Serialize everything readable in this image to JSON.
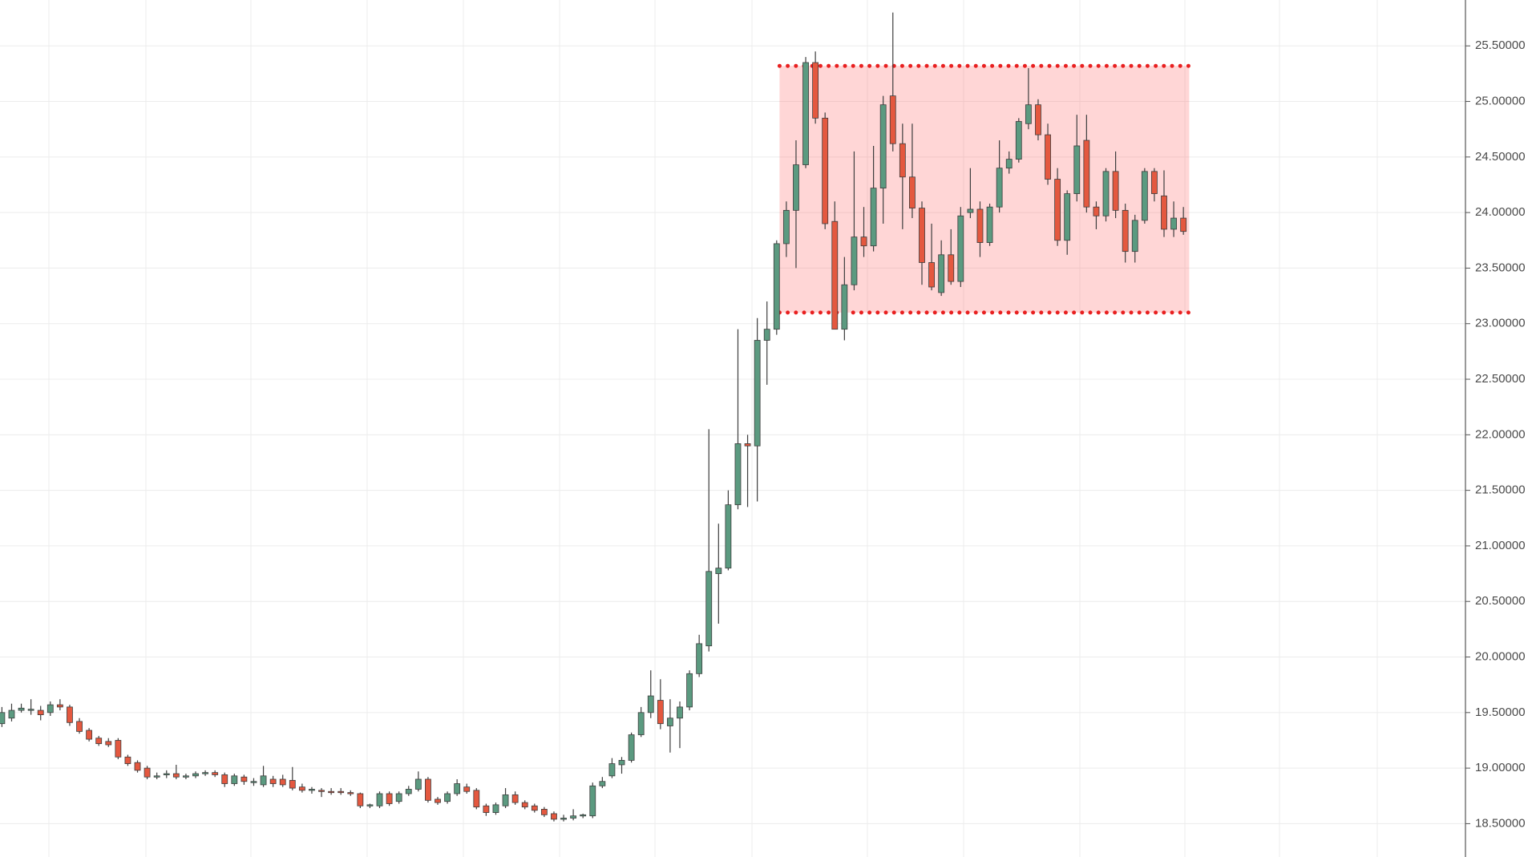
{
  "chart_data": {
    "type": "candlestick",
    "ylim": [
      18.2,
      25.913
    ],
    "yticks": [
      {
        "value": 18.5,
        "label": "18.50000"
      },
      {
        "value": 19,
        "label": "19.00000"
      },
      {
        "value": 19.5,
        "label": "19.50000"
      },
      {
        "value": 20,
        "label": "20.00000"
      },
      {
        "value": 20.5,
        "label": "20.50000"
      },
      {
        "value": 21,
        "label": "21.00000"
      },
      {
        "value": 21.5,
        "label": "21.50000"
      },
      {
        "value": 22,
        "label": "22.00000"
      },
      {
        "value": 22.5,
        "label": "22.50000"
      },
      {
        "value": 23,
        "label": "23.00000"
      },
      {
        "value": 23.5,
        "label": "23.50000"
      },
      {
        "value": 24,
        "label": "24.00000"
      },
      {
        "value": 24.5,
        "label": "24.50000"
      },
      {
        "value": 25,
        "label": "25.00000"
      },
      {
        "value": 25.5,
        "label": "25.50000"
      }
    ],
    "grid": true,
    "up_color": "#5b9a80",
    "down_color": "#e4583f",
    "ohlc": [
      [
        19.4,
        19.55,
        19.37,
        19.5
      ],
      [
        19.45,
        19.58,
        19.42,
        19.52
      ],
      [
        19.52,
        19.58,
        19.5,
        19.54
      ],
      [
        19.52,
        19.62,
        19.48,
        19.53
      ],
      [
        19.52,
        19.56,
        19.43,
        19.48
      ],
      [
        19.5,
        19.6,
        19.47,
        19.57
      ],
      [
        19.57,
        19.62,
        19.52,
        19.55
      ],
      [
        19.55,
        19.57,
        19.38,
        19.41
      ],
      [
        19.42,
        19.45,
        19.31,
        19.33
      ],
      [
        19.34,
        19.36,
        19.24,
        19.26
      ],
      [
        19.27,
        19.29,
        19.2,
        19.22
      ],
      [
        19.24,
        19.27,
        19.19,
        19.21
      ],
      [
        19.25,
        19.27,
        19.08,
        19.1
      ],
      [
        19.1,
        19.12,
        19.02,
        19.04
      ],
      [
        19.05,
        19.07,
        18.96,
        18.98
      ],
      [
        19.0,
        19.02,
        18.9,
        18.92
      ],
      [
        18.92,
        18.96,
        18.9,
        18.93
      ],
      [
        18.94,
        18.98,
        18.91,
        18.95
      ],
      [
        18.95,
        19.03,
        18.9,
        18.92
      ],
      [
        18.92,
        18.95,
        18.9,
        18.93
      ],
      [
        18.93,
        18.97,
        18.91,
        18.95
      ],
      [
        18.95,
        18.98,
        18.93,
        18.96
      ],
      [
        18.96,
        18.98,
        18.92,
        18.94
      ],
      [
        18.94,
        18.96,
        18.83,
        18.86
      ],
      [
        18.86,
        18.95,
        18.84,
        18.93
      ],
      [
        18.92,
        18.94,
        18.85,
        18.88
      ],
      [
        18.87,
        18.91,
        18.84,
        18.88
      ],
      [
        18.85,
        19.02,
        18.83,
        18.93
      ],
      [
        18.9,
        18.93,
        18.83,
        18.86
      ],
      [
        18.9,
        18.94,
        18.83,
        18.85
      ],
      [
        18.89,
        19.01,
        18.8,
        18.82
      ],
      [
        18.83,
        18.86,
        18.78,
        18.8
      ],
      [
        18.8,
        18.83,
        18.77,
        18.81
      ],
      [
        18.8,
        18.82,
        18.74,
        18.79
      ],
      [
        18.79,
        18.82,
        18.76,
        18.78
      ],
      [
        18.79,
        18.82,
        18.76,
        18.78
      ],
      [
        18.78,
        18.8,
        18.75,
        18.77
      ],
      [
        18.77,
        18.78,
        18.64,
        18.66
      ],
      [
        18.66,
        18.68,
        18.64,
        18.67
      ],
      [
        18.66,
        18.79,
        18.64,
        18.77
      ],
      [
        18.77,
        18.79,
        18.66,
        18.68
      ],
      [
        18.7,
        18.79,
        18.68,
        18.77
      ],
      [
        18.77,
        18.84,
        18.75,
        18.81
      ],
      [
        18.81,
        18.97,
        18.79,
        18.9
      ],
      [
        18.9,
        18.92,
        18.69,
        18.71
      ],
      [
        18.72,
        18.74,
        18.67,
        18.69
      ],
      [
        18.7,
        18.79,
        18.68,
        18.77
      ],
      [
        18.77,
        18.9,
        18.75,
        18.86
      ],
      [
        18.83,
        18.86,
        18.77,
        18.79
      ],
      [
        18.8,
        18.82,
        18.63,
        18.65
      ],
      [
        18.66,
        18.68,
        18.57,
        18.6
      ],
      [
        18.6,
        18.69,
        18.58,
        18.67
      ],
      [
        18.66,
        18.82,
        18.64,
        18.76
      ],
      [
        18.76,
        18.79,
        18.67,
        18.69
      ],
      [
        18.69,
        18.71,
        18.63,
        18.65
      ],
      [
        18.66,
        18.68,
        18.6,
        18.62
      ],
      [
        18.63,
        18.65,
        18.56,
        18.58
      ],
      [
        18.59,
        18.61,
        18.52,
        18.54
      ],
      [
        18.54,
        18.58,
        18.52,
        18.55
      ],
      [
        18.55,
        18.63,
        18.53,
        18.57
      ],
      [
        18.57,
        18.59,
        18.55,
        18.58
      ],
      [
        18.57,
        18.87,
        18.55,
        18.84
      ],
      [
        18.84,
        18.92,
        18.82,
        18.88
      ],
      [
        18.93,
        19.09,
        18.91,
        19.04
      ],
      [
        19.03,
        19.1,
        18.95,
        19.07
      ],
      [
        19.07,
        19.32,
        19.05,
        19.3
      ],
      [
        19.3,
        19.55,
        19.28,
        19.5
      ],
      [
        19.5,
        19.88,
        19.45,
        19.65
      ],
      [
        19.61,
        19.8,
        19.35,
        19.4
      ],
      [
        19.38,
        19.62,
        19.14,
        19.45
      ],
      [
        19.45,
        19.6,
        19.18,
        19.55
      ],
      [
        19.55,
        19.88,
        19.52,
        19.85
      ],
      [
        19.85,
        20.2,
        19.82,
        20.12
      ],
      [
        20.1,
        22.05,
        20.05,
        20.77
      ],
      [
        20.75,
        21.2,
        20.3,
        20.8
      ],
      [
        20.8,
        21.5,
        20.78,
        21.37
      ],
      [
        21.37,
        22.95,
        21.33,
        21.92
      ],
      [
        21.92,
        22.0,
        21.35,
        21.9
      ],
      [
        21.9,
        23.05,
        21.4,
        22.85
      ],
      [
        22.85,
        23.2,
        22.45,
        22.95
      ],
      [
        22.95,
        23.75,
        22.9,
        23.72
      ],
      [
        23.72,
        24.1,
        23.6,
        24.02
      ],
      [
        24.02,
        24.65,
        23.5,
        24.43
      ],
      [
        24.43,
        25.4,
        24.4,
        25.35
      ],
      [
        25.35,
        25.45,
        24.8,
        24.85
      ],
      [
        24.85,
        24.9,
        23.85,
        23.9
      ],
      [
        23.92,
        24.1,
        22.95,
        22.95
      ],
      [
        22.95,
        23.6,
        22.85,
        23.35
      ],
      [
        23.35,
        24.55,
        23.3,
        23.78
      ],
      [
        23.78,
        24.05,
        23.6,
        23.7
      ],
      [
        23.7,
        24.6,
        23.65,
        24.22
      ],
      [
        24.22,
        25.05,
        23.9,
        24.97
      ],
      [
        25.05,
        25.8,
        24.55,
        24.62
      ],
      [
        24.62,
        24.8,
        23.85,
        24.32
      ],
      [
        24.32,
        24.8,
        23.95,
        24.04
      ],
      [
        24.04,
        24.1,
        23.35,
        23.55
      ],
      [
        23.55,
        23.9,
        23.3,
        23.33
      ],
      [
        23.28,
        23.75,
        23.25,
        23.62
      ],
      [
        23.62,
        23.85,
        23.35,
        23.38
      ],
      [
        23.38,
        24.05,
        23.33,
        23.97
      ],
      [
        24.0,
        24.4,
        23.95,
        24.03
      ],
      [
        24.03,
        24.1,
        23.6,
        23.73
      ],
      [
        23.73,
        24.08,
        23.7,
        24.05
      ],
      [
        24.05,
        24.65,
        24.0,
        24.4
      ],
      [
        24.4,
        24.55,
        24.35,
        24.48
      ],
      [
        24.48,
        24.85,
        24.45,
        24.82
      ],
      [
        24.8,
        25.3,
        24.75,
        24.97
      ],
      [
        24.97,
        25.02,
        24.65,
        24.7
      ],
      [
        24.7,
        24.8,
        24.25,
        24.3
      ],
      [
        24.3,
        24.4,
        23.7,
        23.75
      ],
      [
        23.75,
        24.2,
        23.62,
        24.17
      ],
      [
        24.17,
        24.88,
        24.1,
        24.6
      ],
      [
        24.65,
        24.88,
        24.0,
        24.05
      ],
      [
        24.05,
        24.1,
        23.85,
        23.97
      ],
      [
        23.97,
        24.4,
        23.92,
        24.37
      ],
      [
        24.37,
        24.55,
        23.95,
        24.02
      ],
      [
        24.02,
        24.08,
        23.55,
        23.65
      ],
      [
        23.65,
        23.98,
        23.55,
        23.93
      ],
      [
        23.93,
        24.4,
        23.9,
        24.37
      ],
      [
        24.37,
        24.4,
        24.1,
        24.17
      ],
      [
        24.15,
        24.38,
        23.78,
        23.85
      ],
      [
        23.85,
        24.1,
        23.78,
        23.95
      ],
      [
        23.95,
        24.05,
        23.8,
        23.83
      ]
    ],
    "range_box": {
      "top": 25.32,
      "bottom": 23.1,
      "fill": "rgba(255,90,90,0.25)",
      "border_color": "#e82020"
    }
  }
}
